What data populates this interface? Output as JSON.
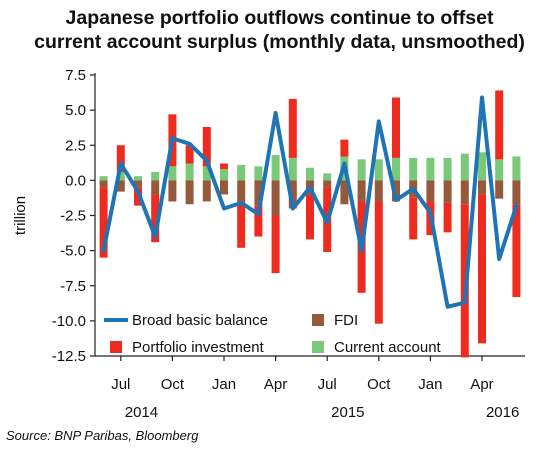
{
  "chart_data": {
    "type": "bar",
    "title_line1": "Japanese portfolio outflows continue to offset",
    "title_line2": "current account surplus (monthly data, unsmoothed)",
    "ylabel": "trillion",
    "ylim": [
      -12.5,
      7.5
    ],
    "yticks": [
      7.5,
      5.0,
      2.5,
      0.0,
      -2.5,
      -5.0,
      -7.5,
      -10.0,
      -12.5
    ],
    "ytick_labels": [
      "7.5",
      "5.0",
      "2.5",
      "0.0",
      "-2.5",
      "-5.0",
      "-7.5",
      "-10.0",
      "-12.5"
    ],
    "stacked": true,
    "x": [
      "2014-06",
      "2014-07",
      "2014-08",
      "2014-09",
      "2014-10",
      "2014-11",
      "2014-12",
      "2015-01",
      "2015-02",
      "2015-03",
      "2015-04",
      "2015-05",
      "2015-06",
      "2015-07",
      "2015-08",
      "2015-09",
      "2015-10",
      "2015-11",
      "2015-12",
      "2016-01",
      "2016-02",
      "2016-03",
      "2016-04",
      "2016-05",
      "2016-06"
    ],
    "x_ticks": [
      {
        "index": 1,
        "label": "Jul",
        "year": "2014"
      },
      {
        "index": 4,
        "label": "Oct"
      },
      {
        "index": 7,
        "label": "Jan"
      },
      {
        "index": 10,
        "label": "Apr"
      },
      {
        "index": 13,
        "label": "Jul",
        "year": "2015"
      },
      {
        "index": 16,
        "label": "Oct"
      },
      {
        "index": 19,
        "label": "Jan"
      },
      {
        "index": 22,
        "label": "Apr",
        "year": "2016"
      }
    ],
    "series": [
      {
        "name": "Current account",
        "color": "#7ac87a",
        "kind": "bar",
        "values": [
          0.3,
          0.6,
          0.3,
          0.6,
          1.0,
          1.2,
          1.0,
          0.8,
          1.1,
          1.0,
          1.8,
          1.6,
          0.9,
          0.5,
          1.7,
          1.5,
          1.5,
          1.6,
          1.6,
          1.6,
          1.6,
          1.9,
          2.0,
          1.5,
          1.7
        ]
      },
      {
        "name": "FDI",
        "color": "#96593c",
        "kind": "bar",
        "values": [
          -0.5,
          -0.8,
          -0.5,
          -1.0,
          -1.5,
          -1.7,
          -1.5,
          -1.0,
          -1.7,
          -1.8,
          -2.5,
          -2.0,
          -1.0,
          -0.5,
          -1.7,
          -1.5,
          -1.5,
          -1.5,
          -1.2,
          -1.5,
          -1.6,
          -1.7,
          -1.0,
          -1.3,
          -1.7
        ]
      },
      {
        "name": "Portfolio investment",
        "color": "#ee2b1f",
        "kind": "bar",
        "values": [
          -5.0,
          1.9,
          -1.3,
          -3.4,
          3.7,
          1.3,
          2.8,
          0.4,
          -3.1,
          -2.2,
          -4.1,
          4.2,
          -3.2,
          -4.6,
          1.2,
          -6.5,
          -8.7,
          4.3,
          -3.0,
          -2.4,
          -2.1,
          -10.9,
          -10.6,
          4.9,
          -6.6
        ]
      },
      {
        "name": "Broad basic balance",
        "color": "#1f74b5",
        "kind": "line",
        "values": [
          -5.0,
          1.2,
          -0.8,
          -4.0,
          3.0,
          2.6,
          1.4,
          -2.0,
          -1.6,
          -2.4,
          4.8,
          -2.0,
          -0.5,
          -3.0,
          1.2,
          -5.0,
          4.2,
          -1.4,
          -0.6,
          -2.3,
          -9.0,
          -8.7,
          5.9,
          -5.6,
          -1.8
        ]
      }
    ],
    "legend": {
      "placement": "bottom",
      "entries": [
        "Broad basic balance",
        "FDI",
        "Portfolio investment",
        "Current account"
      ]
    },
    "source": "Source:  BNP Paribas, Bloomberg"
  }
}
